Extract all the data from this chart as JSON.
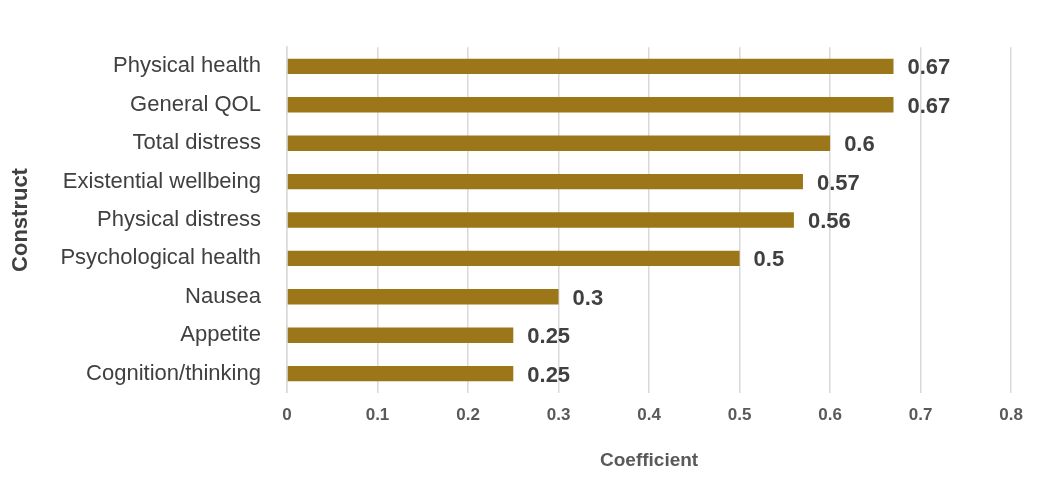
{
  "chart_data": {
    "type": "bar",
    "orientation": "horizontal",
    "xlabel": "Coefficient",
    "ylabel": "Construct",
    "categories": [
      "Physical health",
      "General QOL",
      "Total distress",
      "Existential wellbeing",
      "Physical distress",
      "Psychological health",
      "Nausea",
      "Appetite",
      "Cognition/thinking"
    ],
    "values": [
      0.67,
      0.67,
      0.6,
      0.57,
      0.56,
      0.5,
      0.3,
      0.25,
      0.25
    ],
    "color": "#9c7719",
    "xlim": [
      0,
      0.8
    ],
    "xticks": [
      0,
      0.1,
      0.2,
      0.3,
      0.4,
      0.5,
      0.6,
      0.7,
      0.8
    ],
    "grid": "x",
    "data_labels": true,
    "legend": false
  }
}
